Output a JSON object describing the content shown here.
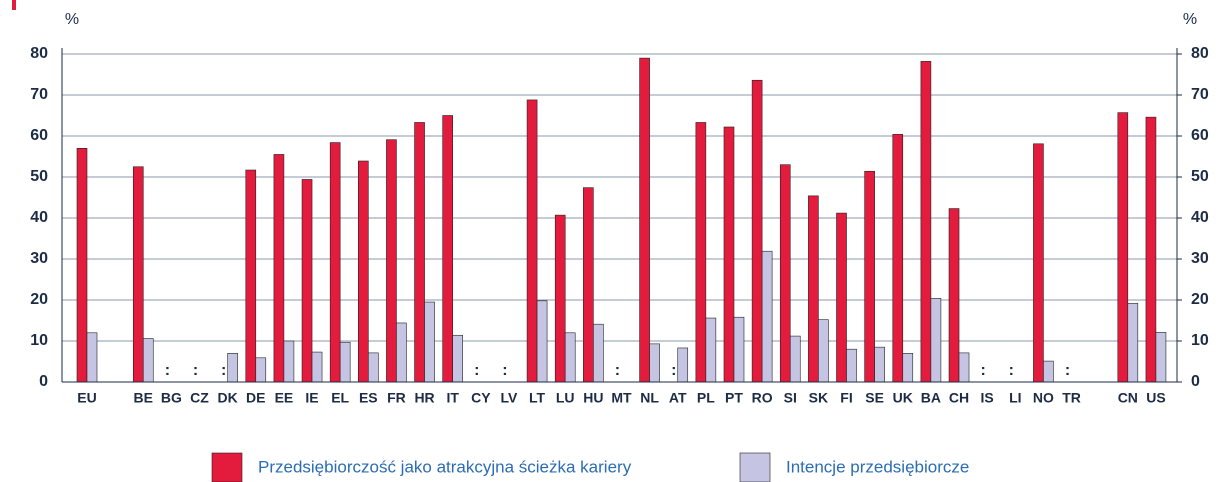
{
  "chart_data": {
    "type": "bar",
    "ylabel": "%",
    "y2label": "%",
    "categories": [
      "EU",
      null,
      "BE",
      "BG",
      "CZ",
      "DK",
      "DE",
      "EE",
      "IE",
      "EL",
      "ES",
      "FR",
      "HR",
      "IT",
      "CY",
      "LV",
      "LT",
      "LU",
      "HU",
      "MT",
      "NL",
      "AT",
      "PL",
      "PT",
      "RO",
      "SI",
      "SK",
      "FI",
      "SE",
      "UK",
      "BA",
      "CH",
      "IS",
      "LI",
      "NO",
      "TR",
      null,
      "CN",
      "US"
    ],
    "series": [
      {
        "name": "Przedsiębiorczość jako atrakcyjna ścieżka kariery",
        "color": "#e31b3d",
        "values": [
          57,
          null,
          52.5,
          null,
          null,
          null,
          51.7,
          55.5,
          49.4,
          58.4,
          53.9,
          59.1,
          63.3,
          65,
          null,
          null,
          68.8,
          40.7,
          47.4,
          null,
          79,
          null,
          63.3,
          62.2,
          73.6,
          53,
          45.4,
          41.2,
          51.4,
          60.4,
          78.2,
          42.3,
          null,
          null,
          58.1,
          null,
          null,
          65.7,
          64.6
        ]
      },
      {
        "name": "Intencje przedsiębiorcze",
        "color": "#c5c5e3",
        "values": [
          12,
          null,
          10.6,
          null,
          null,
          7,
          5.9,
          10,
          7.3,
          9.7,
          7.1,
          14.4,
          19.5,
          11.4,
          null,
          null,
          19.8,
          12,
          14.1,
          null,
          9.3,
          8.3,
          15.6,
          15.8,
          31.9,
          11.2,
          15.2,
          8,
          8.5,
          7,
          20.4,
          7.1,
          null,
          null,
          5.1,
          null,
          null,
          19.2,
          12.1
        ]
      }
    ],
    "missing_label": ":",
    "ylim": [
      0,
      80
    ],
    "yticks": [
      0,
      10,
      20,
      30,
      40,
      50,
      60,
      70,
      80
    ],
    "y2lim": [
      0,
      80
    ],
    "y2ticks": [
      0,
      10,
      20,
      30,
      40,
      50,
      60,
      70,
      80
    ],
    "grid": true
  }
}
